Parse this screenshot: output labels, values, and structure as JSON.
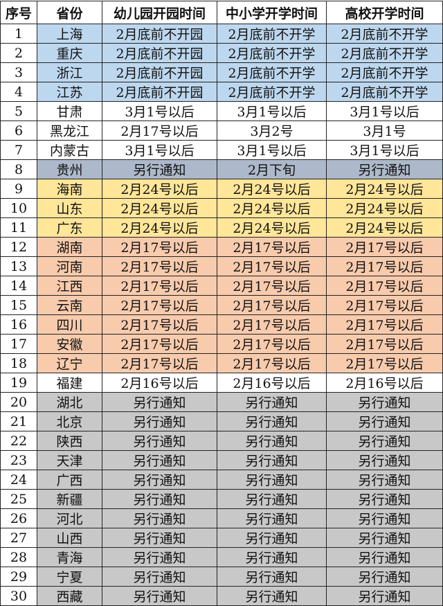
{
  "headers": [
    "序号",
    "省份",
    "幼儿园开园时间",
    "中小学开学时间",
    "高校开学时间"
  ],
  "colors": {
    "blue": "#bdd7ee",
    "slate": "#adb9ca",
    "yellow": "#ffe699",
    "orange": "#f8cbad",
    "grey": "#c8c8c8",
    "white": "#ffffff"
  },
  "rows": [
    {
      "no": "1",
      "province": "上海",
      "kindergarten": "2月底前不开园",
      "school": "2月底前不开学",
      "university": "2月底前不开学",
      "group": "blue"
    },
    {
      "no": "2",
      "province": "重庆",
      "kindergarten": "2月底前不开园",
      "school": "2月底前不开学",
      "university": "2月底前不开学",
      "group": "blue"
    },
    {
      "no": "3",
      "province": "浙江",
      "kindergarten": "2月底前不开园",
      "school": "2月底前不开学",
      "university": "2月底前不开学",
      "group": "blue"
    },
    {
      "no": "4",
      "province": "江苏",
      "kindergarten": "2月底前不开园",
      "school": "2月底前不开学",
      "university": "2月底前不开学",
      "group": "blue"
    },
    {
      "no": "5",
      "province": "甘肃",
      "kindergarten": "3月1号以后",
      "school": "3月1号以后",
      "university": "3月1号以后",
      "group": "white"
    },
    {
      "no": "6",
      "province": "黑龙江",
      "kindergarten": "2月17号以后",
      "school": "3月2号",
      "university": "3月1号",
      "group": "white"
    },
    {
      "no": "7",
      "province": "内蒙古",
      "kindergarten": "3月1号以后",
      "school": "3月1号以后",
      "university": "3月1号以后",
      "group": "white"
    },
    {
      "no": "8",
      "province": "贵州",
      "kindergarten": "另行通知",
      "school": "2月下旬",
      "university": "另行通知",
      "group": "slate"
    },
    {
      "no": "9",
      "province": "海南",
      "kindergarten": "2月24号以后",
      "school": "2月24号以后",
      "university": "2月24号以后",
      "group": "yellow"
    },
    {
      "no": "10",
      "province": "山东",
      "kindergarten": "2月24号以后",
      "school": "2月24号以后",
      "university": "2月24号以后",
      "group": "yellow"
    },
    {
      "no": "11",
      "province": "广东",
      "kindergarten": "2月24号以后",
      "school": "2月24号以后",
      "university": "2月24号以后",
      "group": "yellow"
    },
    {
      "no": "12",
      "province": "湖南",
      "kindergarten": "2月17号以后",
      "school": "2月17号以后",
      "university": "2月17号以后",
      "group": "orange"
    },
    {
      "no": "13",
      "province": "河南",
      "kindergarten": "2月17号以后",
      "school": "2月17号以后",
      "university": "2月17号以后",
      "group": "orange"
    },
    {
      "no": "14",
      "province": "江西",
      "kindergarten": "2月17号以后",
      "school": "2月17号以后",
      "university": "2月17号以后",
      "group": "orange"
    },
    {
      "no": "15",
      "province": "云南",
      "kindergarten": "2月17号以后",
      "school": "2月17号以后",
      "university": "2月17号以后",
      "group": "orange"
    },
    {
      "no": "16",
      "province": "四川",
      "kindergarten": "2月17号以后",
      "school": "2月17号以后",
      "university": "2月17号以后",
      "group": "orange"
    },
    {
      "no": "17",
      "province": "安徽",
      "kindergarten": "2月17号以后",
      "school": "2月17号以后",
      "university": "2月17号以后",
      "group": "orange"
    },
    {
      "no": "18",
      "province": "辽宁",
      "kindergarten": "2月17号以后",
      "school": "2月17号以后",
      "university": "2月17号以后",
      "group": "orange"
    },
    {
      "no": "19",
      "province": "福建",
      "kindergarten": "2月16号以后",
      "school": "2月16号以后",
      "university": "2月16号以后",
      "group": "white"
    },
    {
      "no": "20",
      "province": "湖北",
      "kindergarten": "另行通知",
      "school": "另行通知",
      "university": "另行通知",
      "group": "grey"
    },
    {
      "no": "21",
      "province": "北京",
      "kindergarten": "另行通知",
      "school": "另行通知",
      "university": "另行通知",
      "group": "grey"
    },
    {
      "no": "22",
      "province": "陕西",
      "kindergarten": "另行通知",
      "school": "另行通知",
      "university": "另行通知",
      "group": "grey"
    },
    {
      "no": "23",
      "province": "天津",
      "kindergarten": "另行通知",
      "school": "另行通知",
      "university": "另行通知",
      "group": "grey"
    },
    {
      "no": "24",
      "province": "广西",
      "kindergarten": "另行通知",
      "school": "另行通知",
      "university": "另行通知",
      "group": "grey"
    },
    {
      "no": "25",
      "province": "新疆",
      "kindergarten": "另行通知",
      "school": "另行通知",
      "university": "另行通知",
      "group": "grey"
    },
    {
      "no": "26",
      "province": "河北",
      "kindergarten": "另行通知",
      "school": "另行通知",
      "university": "另行通知",
      "group": "grey"
    },
    {
      "no": "27",
      "province": "山西",
      "kindergarten": "另行通知",
      "school": "另行通知",
      "university": "另行通知",
      "group": "grey"
    },
    {
      "no": "28",
      "province": "青海",
      "kindergarten": "另行通知",
      "school": "另行通知",
      "university": "另行通知",
      "group": "grey"
    },
    {
      "no": "29",
      "province": "宁夏",
      "kindergarten": "另行通知",
      "school": "另行通知",
      "university": "另行通知",
      "group": "grey"
    },
    {
      "no": "30",
      "province": "西藏",
      "kindergarten": "另行通知",
      "school": "另行通知",
      "university": "另行通知",
      "group": "grey"
    }
  ]
}
